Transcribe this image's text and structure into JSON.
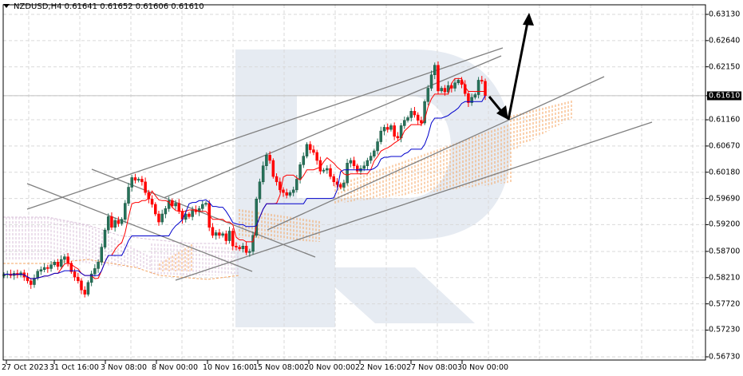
{
  "header": {
    "symbol": "NZDUSD,H4",
    "open": "0.61641",
    "high": "0.61652",
    "low": "0.61606",
    "close": "0.61610"
  },
  "colors": {
    "bull": "#26735a",
    "bear": "#ff0000",
    "tenkan": "#ff0000",
    "kijun": "#0000cc",
    "cloud_bull": "#f4a460",
    "cloud_bear": "#d8bfd8",
    "trendline": "#808080",
    "arrow": "#000000",
    "grid": "#d9d9d9",
    "watermark": "#e6ebf2"
  },
  "y_axis": {
    "labels": [
      "0.63130",
      "0.62640",
      "0.62150",
      "0.61610",
      "0.61160",
      "0.60670",
      "0.60180",
      "0.59690",
      "0.59200",
      "0.58700",
      "0.58210",
      "0.57720",
      "0.57230",
      "0.56730"
    ],
    "current_price": "0.61610"
  },
  "x_axis": {
    "labels": [
      "27 Oct 2023",
      "31 Oct 16:00",
      "3 Nov 08:00",
      "8 Nov 00:00",
      "10 Nov 16:00",
      "15 Nov 08:00",
      "20 Nov 00:00",
      "22 Nov 16:00",
      "27 Nov 08:00",
      "30 Nov 00:00"
    ]
  },
  "chart_data": {
    "type": "candlestick",
    "title": "NZDUSD,H4 0.61641 0.61652 0.61606 0.61610",
    "xlabel": "",
    "ylabel": "",
    "ylim": [
      0.5673,
      0.6313
    ],
    "x_ticks": [
      "27 Oct 2023",
      "31 Oct 16:00",
      "3 Nov 08:00",
      "8 Nov 00:00",
      "10 Nov 16:00",
      "15 Nov 08:00",
      "20 Nov 00:00",
      "22 Nov 16:00",
      "27 Nov 08:00",
      "30 Nov 00:00"
    ],
    "y_ticks": [
      0.6313,
      0.6264,
      0.6215,
      0.6161,
      0.6116,
      0.6067,
      0.6018,
      0.5969,
      0.592,
      0.587,
      0.5821,
      0.5772,
      0.5723,
      0.5673
    ],
    "last_price": 0.6161,
    "indicators": [
      "Ichimoku Tenkan-sen (red)",
      "Ichimoku Kijun-sen (blue)",
      "Ichimoku Kumo cloud"
    ],
    "annotations": [
      "Ascending channel trendlines",
      "Descending channel trendlines",
      "Forecast arrow down to ~0.6114 then up to ~0.6313"
    ],
    "closes": [
      0.5827,
      0.5828,
      0.5825,
      0.5829,
      0.5826,
      0.583,
      0.5822,
      0.5815,
      0.5808,
      0.582,
      0.5833,
      0.5836,
      0.584,
      0.5838,
      0.5845,
      0.585,
      0.5842,
      0.5855,
      0.586,
      0.5848,
      0.5832,
      0.5822,
      0.5815,
      0.5798,
      0.579,
      0.5812,
      0.5828,
      0.5838,
      0.585,
      0.5878,
      0.591,
      0.5935,
      0.5915,
      0.5928,
      0.5922,
      0.593,
      0.596,
      0.599,
      0.6008,
      0.6003,
      0.6005,
      0.6,
      0.598,
      0.5968,
      0.5958,
      0.594,
      0.5925,
      0.594,
      0.595,
      0.5965,
      0.5955,
      0.596,
      0.5945,
      0.593,
      0.594,
      0.5935,
      0.5948,
      0.5944,
      0.595,
      0.5958,
      0.596,
      0.5915,
      0.59,
      0.5905,
      0.59,
      0.5903,
      0.589,
      0.5908,
      0.588,
      0.5878,
      0.5875,
      0.588,
      0.5868,
      0.587,
      0.59,
      0.5968,
      0.6,
      0.603,
      0.605,
      0.604,
      0.601,
      0.6,
      0.5985,
      0.598,
      0.5975,
      0.598,
      0.5985,
      0.6005,
      0.6032,
      0.6048,
      0.607,
      0.606,
      0.6055,
      0.604,
      0.602,
      0.6022,
      0.6025,
      0.601,
      0.6,
      0.5995,
      0.599,
      0.5998,
      0.6035,
      0.604,
      0.603,
      0.602,
      0.6025,
      0.603,
      0.604,
      0.6048,
      0.6058,
      0.6075,
      0.6095,
      0.6102,
      0.6098,
      0.6105,
      0.6085,
      0.6082,
      0.6105,
      0.6115,
      0.612,
      0.6132,
      0.6125,
      0.6115,
      0.611,
      0.615,
      0.6175,
      0.62,
      0.6218,
      0.617,
      0.6175,
      0.6168,
      0.618,
      0.6175,
      0.6185,
      0.619,
      0.6182,
      0.6165,
      0.6148,
      0.6158,
      0.6163,
      0.619,
      0.6188,
      0.6161
    ]
  },
  "watermark": {
    "text": "R"
  }
}
